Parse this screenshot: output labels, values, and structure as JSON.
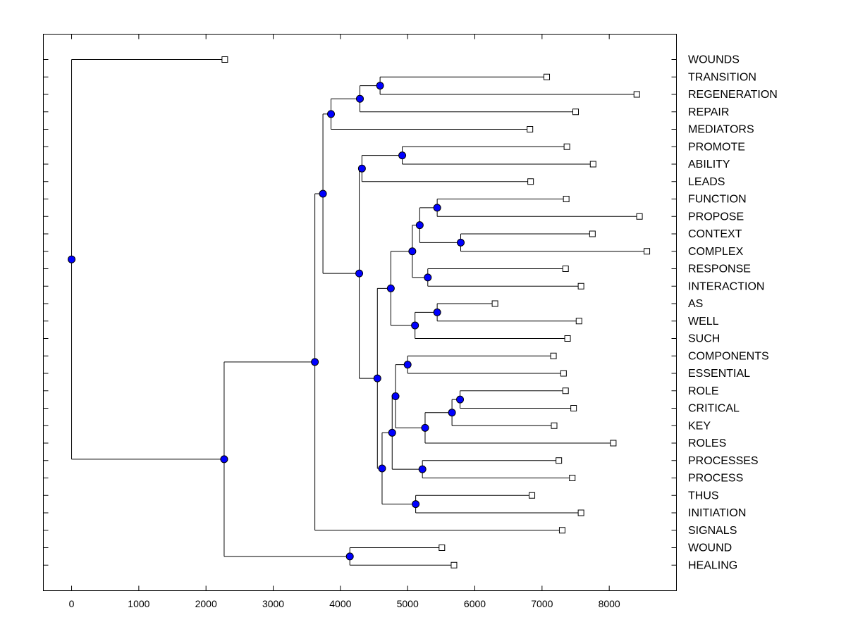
{
  "chart_data": {
    "type": "dendrogram",
    "orientation": "horizontal",
    "title": "",
    "xlabel": "",
    "ylabel": "",
    "xlim": [
      -420,
      9000
    ],
    "xticks": [
      0,
      1000,
      2000,
      3000,
      4000,
      5000,
      6000,
      7000,
      8000
    ],
    "grid": false,
    "leaf_marker": "open-square",
    "node_marker": "filled-circle",
    "node_color": "#0000ff",
    "leaves": [
      {
        "label": "WOUNDS",
        "x": 2280
      },
      {
        "label": "TRANSITION",
        "x": 7070
      },
      {
        "label": "REGENERATION",
        "x": 8410
      },
      {
        "label": "REPAIR",
        "x": 7500
      },
      {
        "label": "MEDIATORS",
        "x": 6820
      },
      {
        "label": "PROMOTE",
        "x": 7370
      },
      {
        "label": "ABILITY",
        "x": 7760
      },
      {
        "label": "LEADS",
        "x": 6830
      },
      {
        "label": "FUNCTION",
        "x": 7360
      },
      {
        "label": "PROPOSE",
        "x": 8450
      },
      {
        "label": "CONTEXT",
        "x": 7750
      },
      {
        "label": "COMPLEX",
        "x": 8560
      },
      {
        "label": "RESPONSE",
        "x": 7350
      },
      {
        "label": "INTERACTION",
        "x": 7580
      },
      {
        "label": "AS",
        "x": 6300
      },
      {
        "label": "WELL",
        "x": 7550
      },
      {
        "label": "SUCH",
        "x": 7380
      },
      {
        "label": "COMPONENTS",
        "x": 7170
      },
      {
        "label": "ESSENTIAL",
        "x": 7320
      },
      {
        "label": "ROLE",
        "x": 7350
      },
      {
        "label": "CRITICAL",
        "x": 7470
      },
      {
        "label": "KEY",
        "x": 7180
      },
      {
        "label": "ROLES",
        "x": 8060
      },
      {
        "label": "PROCESSES",
        "x": 7250
      },
      {
        "label": "PROCESS",
        "x": 7450
      },
      {
        "label": "THUS",
        "x": 6850
      },
      {
        "label": "INITIATION",
        "x": 7580
      },
      {
        "label": "SIGNALS",
        "x": 7300
      },
      {
        "label": "WOUND",
        "x": 5510
      },
      {
        "label": "HEALING",
        "x": 5690
      }
    ],
    "tree": {
      "h": 0,
      "c": [
        0,
        {
          "h": 2270,
          "c": [
            {
              "h": 3620,
              "c": [
                {
                  "h": 3740,
                  "c": [
                    {
                      "h": 3860,
                      "c": [
                        {
                          "h": 4290,
                          "c": [
                            {
                              "h": 4590,
                              "c": [
                                1,
                                2
                              ]
                            },
                            3
                          ]
                        },
                        4
                      ]
                    },
                    {
                      "h": 4280,
                      "c": [
                        {
                          "h": 4320,
                          "c": [
                            {
                              "h": 4920,
                              "c": [
                                5,
                                6
                              ]
                            },
                            7
                          ]
                        },
                        {
                          "h": 4550,
                          "c": [
                            {
                              "h": 4750,
                              "c": [
                                {
                                  "h": 5070,
                                  "c": [
                                    {
                                      "h": 5180,
                                      "c": [
                                        {
                                          "h": 5440,
                                          "c": [
                                            8,
                                            9
                                          ]
                                        },
                                        {
                                          "h": 5790,
                                          "c": [
                                            10,
                                            11
                                          ]
                                        }
                                      ]
                                    },
                                    {
                                      "h": 5300,
                                      "c": [
                                        12,
                                        13
                                      ]
                                    }
                                  ]
                                },
                                {
                                  "h": 5110,
                                  "c": [
                                    {
                                      "h": 5440,
                                      "c": [
                                        14,
                                        15
                                      ]
                                    },
                                    16
                                  ]
                                }
                              ]
                            },
                            {
                              "h": 4620,
                              "c": [
                                {
                                  "h": 4770,
                                  "c": [
                                    {
                                      "h": 4820,
                                      "c": [
                                        {
                                          "h": 5000,
                                          "c": [
                                            17,
                                            18
                                          ]
                                        },
                                        {
                                          "h": 5260,
                                          "c": [
                                            {
                                              "h": 5660,
                                              "c": [
                                                {
                                                  "h": 5780,
                                                  "c": [
                                                    19,
                                                    20
                                                  ]
                                                },
                                                21
                                              ]
                                            },
                                            22
                                          ]
                                        }
                                      ]
                                    },
                                    {
                                      "h": 5220,
                                      "c": [
                                        23,
                                        24
                                      ]
                                    }
                                  ]
                                },
                                {
                                  "h": 5120,
                                  "c": [
                                    25,
                                    26
                                  ]
                                }
                              ]
                            }
                          ]
                        }
                      ]
                    }
                  ]
                },
                27
              ]
            },
            {
              "h": 4140,
              "c": [
                28,
                29
              ]
            }
          ]
        }
      ]
    }
  }
}
